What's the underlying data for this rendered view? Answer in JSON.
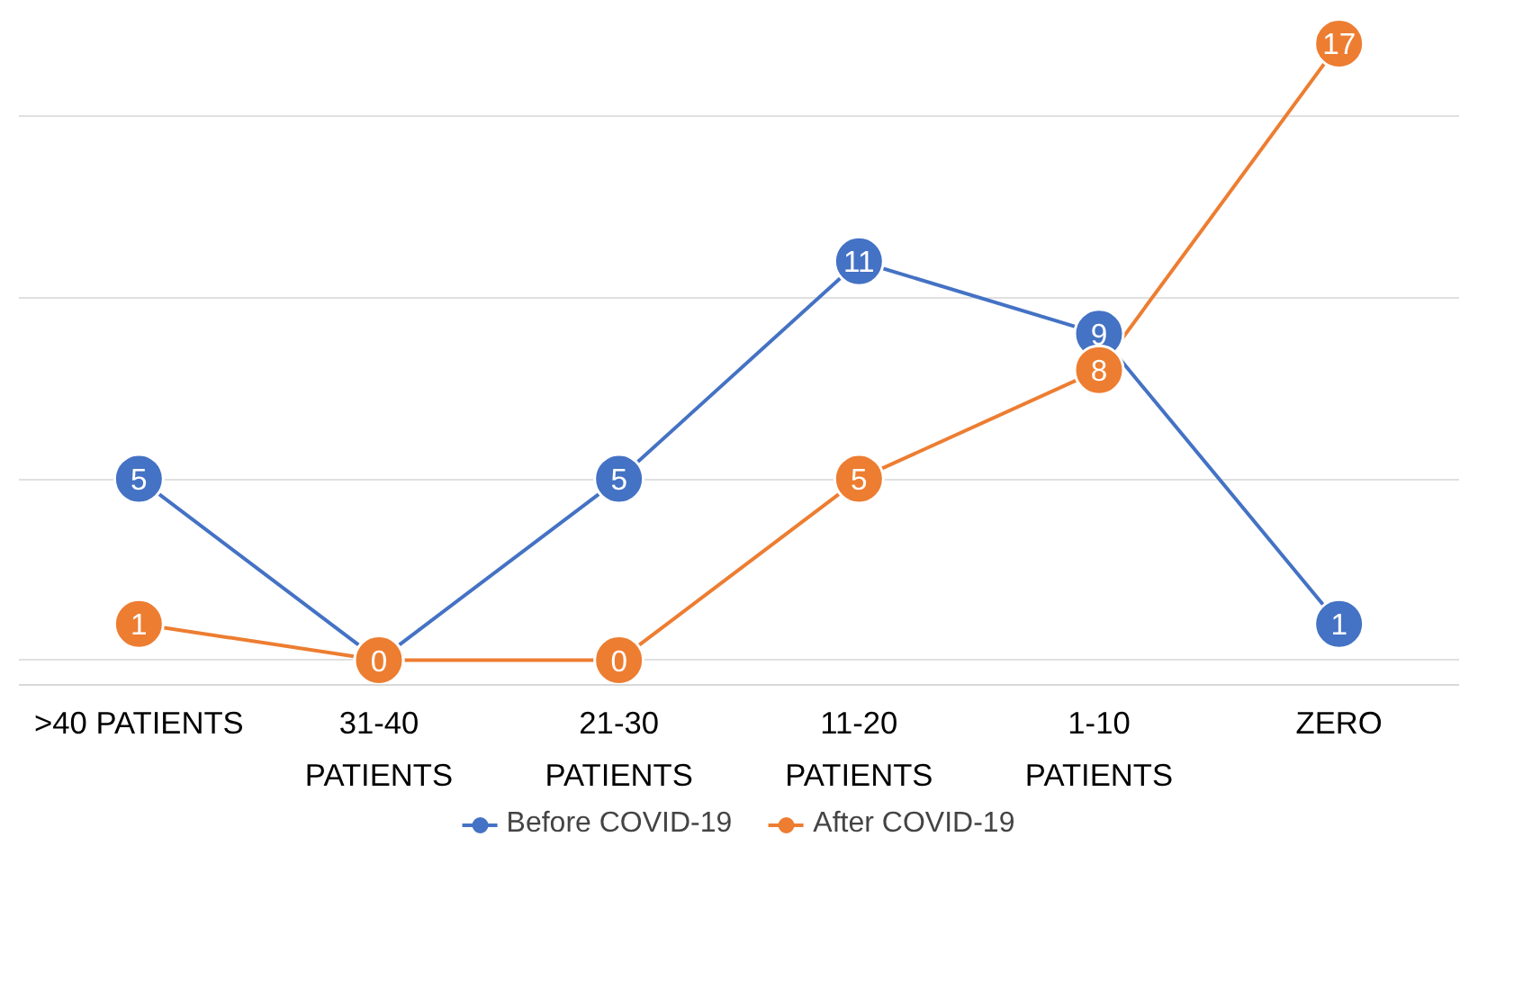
{
  "chart_data": {
    "type": "line",
    "categories": [
      ">40 PATIENTS",
      "31-40\nPATIENTS",
      "21-30\nPATIENTS",
      "11-20\nPATIENTS",
      "1-10\nPATIENTS",
      "ZERO"
    ],
    "series": [
      {
        "name": "Before COVID-19",
        "color": "#4472c4",
        "values": [
          5,
          0,
          5,
          11,
          9,
          1
        ],
        "value_labels": [
          "5",
          null,
          "5",
          "11",
          "9",
          "1"
        ]
      },
      {
        "name": "After COVID-19",
        "color": "#ed7d31",
        "values": [
          1,
          0,
          0,
          5,
          8,
          17
        ],
        "value_labels": [
          "1",
          "0",
          "0",
          "5",
          "8",
          "17"
        ]
      }
    ],
    "tick_labels": "x",
    "grid": "y",
    "legend": "bottom",
    "marker": "circle",
    "line_style": "solid"
  }
}
